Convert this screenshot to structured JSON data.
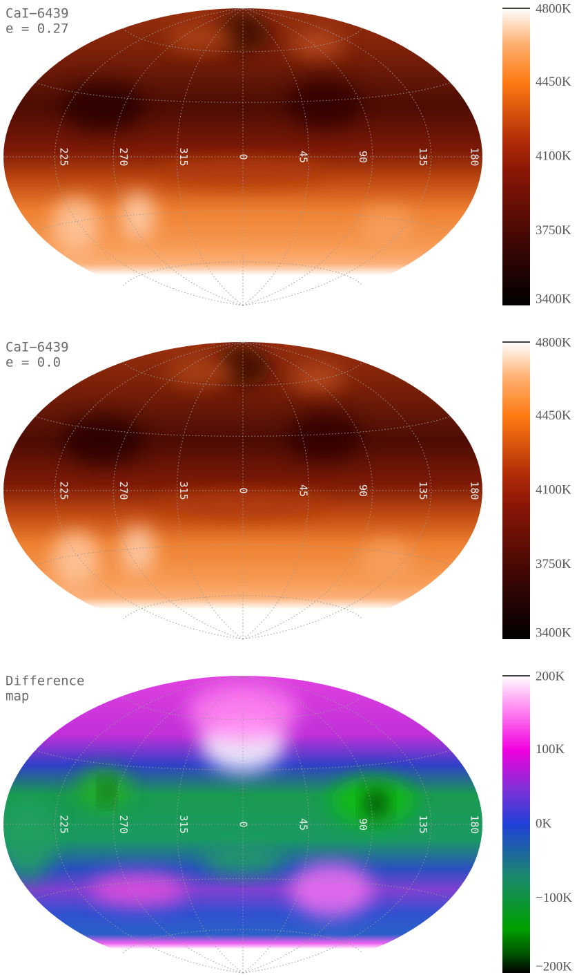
{
  "chart_data": [
    {
      "type": "map",
      "title": [
        "CaI−6439",
        "e = 0.27"
      ],
      "colormap": "temperature",
      "xticks": [
        225,
        270,
        315,
        0,
        45,
        90,
        135,
        180
      ],
      "grid": true,
      "ylim": [
        3400,
        4800
      ],
      "yticks": [
        {
          "value": 3400,
          "label": "3400K"
        },
        {
          "value": 3750,
          "label": "3750K"
        },
        {
          "value": 4100,
          "label": "4100K"
        },
        {
          "value": 4450,
          "label": "4450K"
        },
        {
          "value": 4800,
          "label": "4800K"
        }
      ]
    },
    {
      "type": "map",
      "title": [
        "CaI−6439",
        "e = 0.0"
      ],
      "colormap": "temperature",
      "xticks": [
        225,
        270,
        315,
        0,
        45,
        90,
        135,
        180
      ],
      "grid": true,
      "ylim": [
        3400,
        4800
      ],
      "yticks": [
        {
          "value": 3400,
          "label": "3400K"
        },
        {
          "value": 3750,
          "label": "3750K"
        },
        {
          "value": 4100,
          "label": "4100K"
        },
        {
          "value": 4450,
          "label": "4450K"
        },
        {
          "value": 4800,
          "label": "4800K"
        }
      ]
    },
    {
      "type": "map",
      "title": [
        "Difference",
        "map"
      ],
      "colormap": "difference",
      "xticks": [
        225,
        270,
        315,
        0,
        45,
        90,
        135,
        180
      ],
      "grid": true,
      "ylim": [
        -200,
        200
      ],
      "yticks": [
        {
          "value": -200,
          "label": "−200K"
        },
        {
          "value": -100,
          "label": "−100K"
        },
        {
          "value": 0,
          "label": "0K"
        },
        {
          "value": 100,
          "label": "100K"
        },
        {
          "value": 200,
          "label": "200K"
        }
      ]
    }
  ]
}
